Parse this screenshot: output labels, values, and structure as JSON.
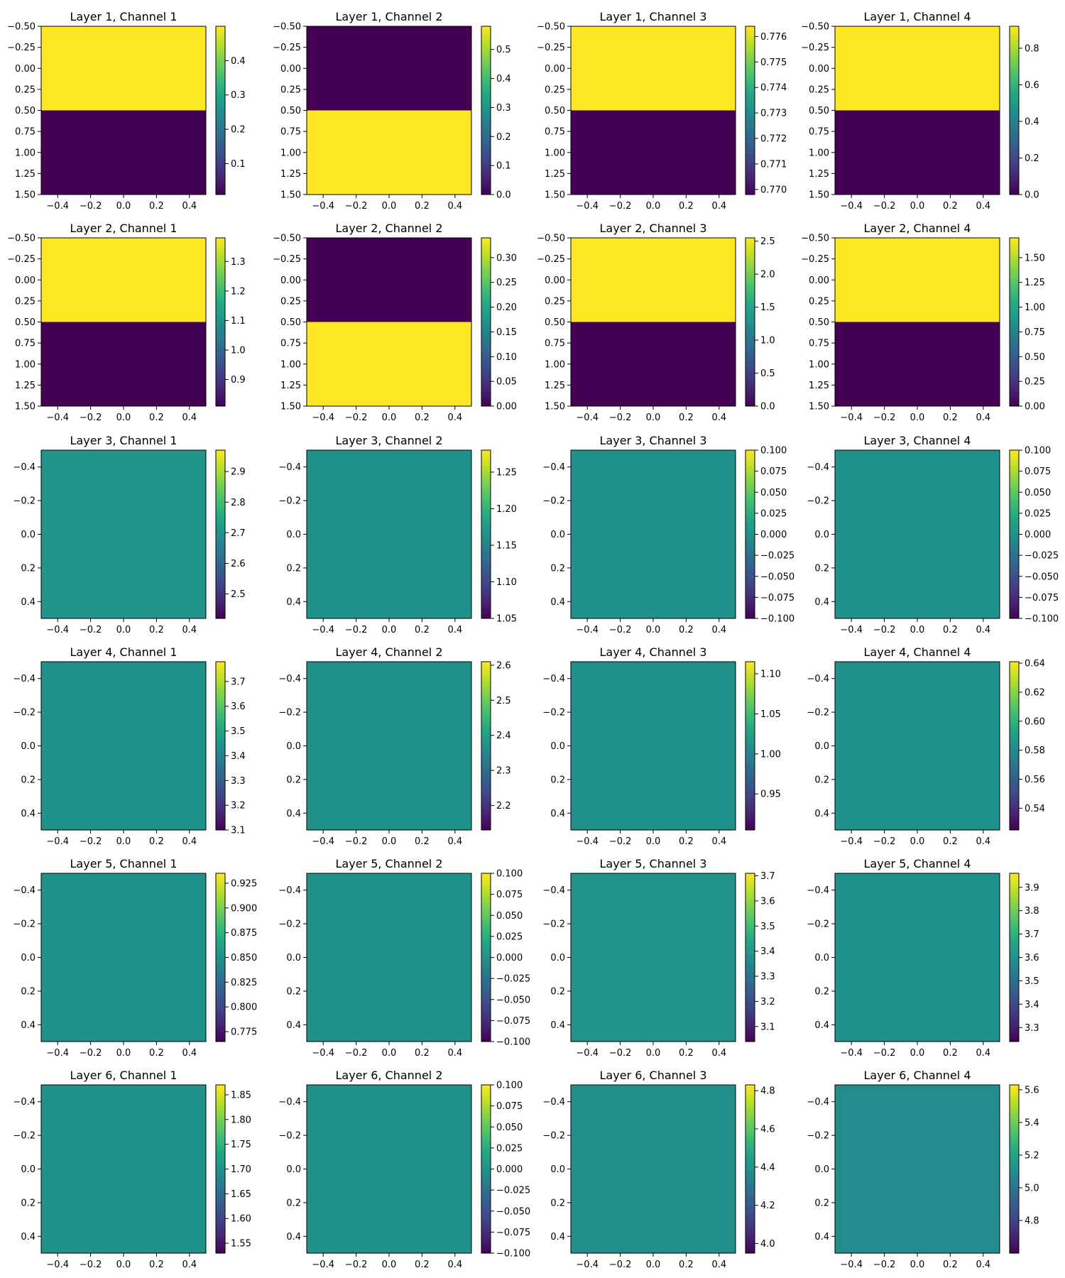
{
  "colors": {
    "viridis_low": "#440154",
    "viridis_mid": "#21918c",
    "viridis_high": "#fde725",
    "axes_edge": "#000000",
    "background": "#ffffff"
  },
  "colormap": "viridis",
  "chart_data": [
    {
      "type": "heatmap",
      "title": "Layer 1, Channel 1",
      "x_extent": [
        -0.5,
        0.5
      ],
      "y_extent": [
        1.5,
        -0.5
      ],
      "y_inverted": true,
      "xticks": [
        "−0.4",
        "−0.2",
        "0.0",
        "0.2",
        "0.4"
      ],
      "yticks": [
        "−0.50",
        "−0.25",
        "0.00",
        "0.25",
        "0.50",
        "0.75",
        "1.00",
        "1.25",
        "1.50"
      ],
      "values": [
        [
          0.5
        ],
        [
          0.01
        ]
      ],
      "colorbar": {
        "range": [
          0.01,
          0.5
        ],
        "ticks": [
          "0.1",
          "0.2",
          "0.3",
          "0.4"
        ]
      }
    },
    {
      "type": "heatmap",
      "title": "Layer 1, Channel 2",
      "x_extent": [
        -0.5,
        0.5
      ],
      "y_extent": [
        1.5,
        -0.5
      ],
      "y_inverted": true,
      "xticks": [
        "−0.4",
        "−0.2",
        "0.0",
        "0.2",
        "0.4"
      ],
      "yticks": [
        "−0.50",
        "−0.25",
        "0.00",
        "0.25",
        "0.50",
        "0.75",
        "1.00",
        "1.25",
        "1.50"
      ],
      "values": [
        [
          0.0
        ],
        [
          0.58
        ]
      ],
      "colorbar": {
        "range": [
          0.0,
          0.58
        ],
        "ticks": [
          "0.0",
          "0.1",
          "0.2",
          "0.3",
          "0.4",
          "0.5"
        ]
      }
    },
    {
      "type": "heatmap",
      "title": "Layer 1, Channel 3",
      "x_extent": [
        -0.5,
        0.5
      ],
      "y_extent": [
        1.5,
        -0.5
      ],
      "y_inverted": true,
      "xticks": [
        "−0.4",
        "−0.2",
        "0.0",
        "0.2",
        "0.4"
      ],
      "yticks": [
        "−0.50",
        "−0.25",
        "0.00",
        "0.25",
        "0.50",
        "0.75",
        "1.00",
        "1.25",
        "1.50"
      ],
      "values": [
        [
          0.7764
        ],
        [
          0.7698
        ]
      ],
      "colorbar": {
        "range": [
          0.7698,
          0.7764
        ],
        "ticks": [
          "0.770",
          "0.771",
          "0.772",
          "0.773",
          "0.774",
          "0.775",
          "0.776"
        ]
      }
    },
    {
      "type": "heatmap",
      "title": "Layer 1, Channel 4",
      "x_extent": [
        -0.5,
        0.5
      ],
      "y_extent": [
        1.5,
        -0.5
      ],
      "y_inverted": true,
      "xticks": [
        "−0.4",
        "−0.2",
        "0.0",
        "0.2",
        "0.4"
      ],
      "yticks": [
        "−0.50",
        "−0.25",
        "0.00",
        "0.25",
        "0.50",
        "0.75",
        "1.00",
        "1.25",
        "1.50"
      ],
      "values": [
        [
          0.92
        ],
        [
          0.0
        ]
      ],
      "colorbar": {
        "range": [
          0.0,
          0.92
        ],
        "ticks": [
          "0.0",
          "0.2",
          "0.4",
          "0.6",
          "0.8"
        ]
      }
    },
    {
      "type": "heatmap",
      "title": "Layer 2, Channel 1",
      "x_extent": [
        -0.5,
        0.5
      ],
      "y_extent": [
        1.5,
        -0.5
      ],
      "y_inverted": true,
      "xticks": [
        "−0.4",
        "−0.2",
        "0.0",
        "0.2",
        "0.4"
      ],
      "yticks": [
        "−0.50",
        "−0.25",
        "0.00",
        "0.25",
        "0.50",
        "0.75",
        "1.00",
        "1.25",
        "1.50"
      ],
      "values": [
        [
          1.38
        ],
        [
          0.81
        ]
      ],
      "colorbar": {
        "range": [
          0.81,
          1.38
        ],
        "ticks": [
          "0.9",
          "1.0",
          "1.1",
          "1.2",
          "1.3"
        ]
      }
    },
    {
      "type": "heatmap",
      "title": "Layer 2, Channel 2",
      "x_extent": [
        -0.5,
        0.5
      ],
      "y_extent": [
        1.5,
        -0.5
      ],
      "y_inverted": true,
      "xticks": [
        "−0.4",
        "−0.2",
        "0.0",
        "0.2",
        "0.4"
      ],
      "yticks": [
        "−0.50",
        "−0.25",
        "0.00",
        "0.25",
        "0.50",
        "0.75",
        "1.00",
        "1.25",
        "1.50"
      ],
      "values": [
        [
          0.0
        ],
        [
          0.34
        ]
      ],
      "colorbar": {
        "range": [
          0.0,
          0.34
        ],
        "ticks": [
          "0.00",
          "0.05",
          "0.10",
          "0.15",
          "0.20",
          "0.25",
          "0.30"
        ]
      }
    },
    {
      "type": "heatmap",
      "title": "Layer 2, Channel 3",
      "x_extent": [
        -0.5,
        0.5
      ],
      "y_extent": [
        1.5,
        -0.5
      ],
      "y_inverted": true,
      "xticks": [
        "−0.4",
        "−0.2",
        "0.0",
        "0.2",
        "0.4"
      ],
      "yticks": [
        "−0.50",
        "−0.25",
        "0.00",
        "0.25",
        "0.50",
        "0.75",
        "1.00",
        "1.25",
        "1.50"
      ],
      "values": [
        [
          2.55
        ],
        [
          0.0
        ]
      ],
      "colorbar": {
        "range": [
          0.0,
          2.55
        ],
        "ticks": [
          "0.0",
          "0.5",
          "1.0",
          "1.5",
          "2.0",
          "2.5"
        ]
      }
    },
    {
      "type": "heatmap",
      "title": "Layer 2, Channel 4",
      "x_extent": [
        -0.5,
        0.5
      ],
      "y_extent": [
        1.5,
        -0.5
      ],
      "y_inverted": true,
      "xticks": [
        "−0.4",
        "−0.2",
        "0.0",
        "0.2",
        "0.4"
      ],
      "yticks": [
        "−0.50",
        "−0.25",
        "0.00",
        "0.25",
        "0.50",
        "0.75",
        "1.00",
        "1.25",
        "1.50"
      ],
      "values": [
        [
          1.7
        ],
        [
          0.0
        ]
      ],
      "colorbar": {
        "range": [
          0.0,
          1.7
        ],
        "ticks": [
          "0.00",
          "0.25",
          "0.50",
          "0.75",
          "1.00",
          "1.25",
          "1.50"
        ]
      }
    },
    {
      "type": "heatmap",
      "title": "Layer 3, Channel 1",
      "x_extent": [
        -0.5,
        0.5
      ],
      "y_extent": [
        0.5,
        -0.5
      ],
      "y_inverted": true,
      "xticks": [
        "−0.4",
        "−0.2",
        "0.0",
        "0.2",
        "0.4"
      ],
      "yticks": [
        "−0.4",
        "−0.2",
        "0.0",
        "0.2",
        "0.4"
      ],
      "values": [
        [
          2.7
        ]
      ],
      "colorbar": {
        "range": [
          2.42,
          2.97
        ],
        "ticks": [
          "2.5",
          "2.6",
          "2.7",
          "2.8",
          "2.9"
        ]
      }
    },
    {
      "type": "heatmap",
      "title": "Layer 3, Channel 2",
      "x_extent": [
        -0.5,
        0.5
      ],
      "y_extent": [
        0.5,
        -0.5
      ],
      "y_inverted": true,
      "xticks": [
        "−0.4",
        "−0.2",
        "0.0",
        "0.2",
        "0.4"
      ],
      "yticks": [
        "−0.4",
        "−0.2",
        "0.0",
        "0.2",
        "0.4"
      ],
      "values": [
        [
          1.165
        ]
      ],
      "colorbar": {
        "range": [
          1.05,
          1.28
        ],
        "ticks": [
          "1.05",
          "1.10",
          "1.15",
          "1.20",
          "1.25"
        ]
      }
    },
    {
      "type": "heatmap",
      "title": "Layer 3, Channel 3",
      "x_extent": [
        -0.5,
        0.5
      ],
      "y_extent": [
        0.5,
        -0.5
      ],
      "y_inverted": true,
      "xticks": [
        "−0.4",
        "−0.2",
        "0.0",
        "0.2",
        "0.4"
      ],
      "yticks": [
        "−0.4",
        "−0.2",
        "0.0",
        "0.2",
        "0.4"
      ],
      "values": [
        [
          0.0
        ]
      ],
      "colorbar": {
        "range": [
          -0.1,
          0.1
        ],
        "ticks": [
          "−0.100",
          "−0.075",
          "−0.050",
          "−0.025",
          "0.000",
          "0.025",
          "0.050",
          "0.075",
          "0.100"
        ]
      }
    },
    {
      "type": "heatmap",
      "title": "Layer 3, Channel 4",
      "x_extent": [
        -0.5,
        0.5
      ],
      "y_extent": [
        0.5,
        -0.5
      ],
      "y_inverted": true,
      "xticks": [
        "−0.4",
        "−0.2",
        "0.0",
        "0.2",
        "0.4"
      ],
      "yticks": [
        "−0.4",
        "−0.2",
        "0.0",
        "0.2",
        "0.4"
      ],
      "values": [
        [
          0.0
        ]
      ],
      "colorbar": {
        "range": [
          -0.1,
          0.1
        ],
        "ticks": [
          "−0.100",
          "−0.075",
          "−0.050",
          "−0.025",
          "0.000",
          "0.025",
          "0.050",
          "0.075",
          "0.100"
        ]
      }
    },
    {
      "type": "heatmap",
      "title": "Layer 4, Channel 1",
      "x_extent": [
        -0.5,
        0.5
      ],
      "y_extent": [
        0.5,
        -0.5
      ],
      "y_inverted": true,
      "xticks": [
        "−0.4",
        "−0.2",
        "0.0",
        "0.2",
        "0.4"
      ],
      "yticks": [
        "−0.4",
        "−0.2",
        "0.0",
        "0.2",
        "0.4"
      ],
      "values": [
        [
          3.44
        ]
      ],
      "colorbar": {
        "range": [
          3.1,
          3.78
        ],
        "ticks": [
          "3.1",
          "3.2",
          "3.3",
          "3.4",
          "3.5",
          "3.6",
          "3.7"
        ]
      }
    },
    {
      "type": "heatmap",
      "title": "Layer 4, Channel 2",
      "x_extent": [
        -0.5,
        0.5
      ],
      "y_extent": [
        0.5,
        -0.5
      ],
      "y_inverted": true,
      "xticks": [
        "−0.4",
        "−0.2",
        "0.0",
        "0.2",
        "0.4"
      ],
      "yticks": [
        "−0.4",
        "−0.2",
        "0.0",
        "0.2",
        "0.4"
      ],
      "values": [
        [
          2.37
        ]
      ],
      "colorbar": {
        "range": [
          2.13,
          2.61
        ],
        "ticks": [
          "2.2",
          "2.3",
          "2.4",
          "2.5",
          "2.6"
        ]
      }
    },
    {
      "type": "heatmap",
      "title": "Layer 4, Channel 3",
      "x_extent": [
        -0.5,
        0.5
      ],
      "y_extent": [
        0.5,
        -0.5
      ],
      "y_inverted": true,
      "xticks": [
        "−0.4",
        "−0.2",
        "0.0",
        "0.2",
        "0.4"
      ],
      "yticks": [
        "−0.4",
        "−0.2",
        "0.0",
        "0.2",
        "0.4"
      ],
      "values": [
        [
          1.01
        ]
      ],
      "colorbar": {
        "range": [
          0.905,
          1.115
        ],
        "ticks": [
          "0.95",
          "1.00",
          "1.05",
          "1.10"
        ]
      }
    },
    {
      "type": "heatmap",
      "title": "Layer 4, Channel 4",
      "x_extent": [
        -0.5,
        0.5
      ],
      "y_extent": [
        0.5,
        -0.5
      ],
      "y_inverted": true,
      "xticks": [
        "−0.4",
        "−0.2",
        "0.0",
        "0.2",
        "0.4"
      ],
      "yticks": [
        "−0.4",
        "−0.2",
        "0.0",
        "0.2",
        "0.4"
      ],
      "values": [
        [
          0.583
        ]
      ],
      "colorbar": {
        "range": [
          0.525,
          0.641
        ],
        "ticks": [
          "0.54",
          "0.56",
          "0.58",
          "0.60",
          "0.62",
          "0.64"
        ]
      }
    },
    {
      "type": "heatmap",
      "title": "Layer 5, Channel 1",
      "x_extent": [
        -0.5,
        0.5
      ],
      "y_extent": [
        0.5,
        -0.5
      ],
      "y_inverted": true,
      "xticks": [
        "−0.4",
        "−0.2",
        "0.0",
        "0.2",
        "0.4"
      ],
      "yticks": [
        "−0.4",
        "−0.2",
        "0.0",
        "0.2",
        "0.4"
      ],
      "values": [
        [
          0.85
        ]
      ],
      "colorbar": {
        "range": [
          0.765,
          0.935
        ],
        "ticks": [
          "0.775",
          "0.800",
          "0.825",
          "0.850",
          "0.875",
          "0.900",
          "0.925"
        ]
      }
    },
    {
      "type": "heatmap",
      "title": "Layer 5, Channel 2",
      "x_extent": [
        -0.5,
        0.5
      ],
      "y_extent": [
        0.5,
        -0.5
      ],
      "y_inverted": true,
      "xticks": [
        "−0.4",
        "−0.2",
        "0.0",
        "0.2",
        "0.4"
      ],
      "yticks": [
        "−0.4",
        "−0.2",
        "0.0",
        "0.2",
        "0.4"
      ],
      "values": [
        [
          0.0
        ]
      ],
      "colorbar": {
        "range": [
          -0.1,
          0.1
        ],
        "ticks": [
          "−0.100",
          "−0.075",
          "−0.050",
          "−0.025",
          "0.000",
          "0.025",
          "0.050",
          "0.075",
          "0.100"
        ]
      }
    },
    {
      "type": "heatmap",
      "title": "Layer 5, Channel 3",
      "x_extent": [
        -0.5,
        0.5
      ],
      "y_extent": [
        0.5,
        -0.5
      ],
      "y_inverted": true,
      "xticks": [
        "−0.4",
        "−0.2",
        "0.0",
        "0.2",
        "0.4"
      ],
      "yticks": [
        "−0.4",
        "−0.2",
        "0.0",
        "0.2",
        "0.4"
      ],
      "values": [
        [
          3.38
        ]
      ],
      "colorbar": {
        "range": [
          3.04,
          3.71
        ],
        "ticks": [
          "3.1",
          "3.2",
          "3.3",
          "3.4",
          "3.5",
          "3.6",
          "3.7"
        ]
      }
    },
    {
      "type": "heatmap",
      "title": "Layer 5, Channel 4",
      "x_extent": [
        -0.5,
        0.5
      ],
      "y_extent": [
        0.5,
        -0.5
      ],
      "y_inverted": true,
      "xticks": [
        "−0.4",
        "−0.2",
        "0.0",
        "0.2",
        "0.4"
      ],
      "yticks": [
        "−0.4",
        "−0.2",
        "0.0",
        "0.2",
        "0.4"
      ],
      "values": [
        [
          3.6
        ]
      ],
      "colorbar": {
        "range": [
          3.24,
          3.96
        ],
        "ticks": [
          "3.3",
          "3.4",
          "3.5",
          "3.6",
          "3.7",
          "3.8",
          "3.9"
        ]
      }
    },
    {
      "type": "heatmap",
      "title": "Layer 6, Channel 1",
      "x_extent": [
        -0.5,
        0.5
      ],
      "y_extent": [
        0.5,
        -0.5
      ],
      "y_inverted": true,
      "xticks": [
        "−0.4",
        "−0.2",
        "0.0",
        "0.2",
        "0.4"
      ],
      "yticks": [
        "−0.4",
        "−0.2",
        "0.0",
        "0.2",
        "0.4"
      ],
      "values": [
        [
          1.7
        ]
      ],
      "colorbar": {
        "range": [
          1.53,
          1.87
        ],
        "ticks": [
          "1.55",
          "1.60",
          "1.65",
          "1.70",
          "1.75",
          "1.80",
          "1.85"
        ]
      }
    },
    {
      "type": "heatmap",
      "title": "Layer 6, Channel 2",
      "x_extent": [
        -0.5,
        0.5
      ],
      "y_extent": [
        0.5,
        -0.5
      ],
      "y_inverted": true,
      "xticks": [
        "−0.4",
        "−0.2",
        "0.0",
        "0.2",
        "0.4"
      ],
      "yticks": [
        "−0.4",
        "−0.2",
        "0.0",
        "0.2",
        "0.4"
      ],
      "values": [
        [
          0.0
        ]
      ],
      "colorbar": {
        "range": [
          -0.1,
          0.1
        ],
        "ticks": [
          "−0.100",
          "−0.075",
          "−0.050",
          "−0.025",
          "0.000",
          "0.025",
          "0.050",
          "0.075",
          "0.100"
        ]
      }
    },
    {
      "type": "heatmap",
      "title": "Layer 6, Channel 3",
      "x_extent": [
        -0.5,
        0.5
      ],
      "y_extent": [
        0.5,
        -0.5
      ],
      "y_inverted": true,
      "xticks": [
        "−0.4",
        "−0.2",
        "0.0",
        "0.2",
        "0.4"
      ],
      "yticks": [
        "−0.4",
        "−0.2",
        "0.0",
        "0.2",
        "0.4"
      ],
      "values": [
        [
          4.38
        ]
      ],
      "colorbar": {
        "range": [
          3.95,
          4.83
        ],
        "ticks": [
          "4.0",
          "4.2",
          "4.4",
          "4.6",
          "4.8"
        ]
      }
    },
    {
      "type": "heatmap",
      "title": "Layer 6, Channel 4",
      "x_extent": [
        -0.5,
        0.5
      ],
      "y_extent": [
        0.5,
        -0.5
      ],
      "y_inverted": true,
      "xticks": [
        "−0.4",
        "−0.2",
        "0.0",
        "0.2",
        "0.4"
      ],
      "yticks": [
        "−0.4",
        "−0.2",
        "0.0",
        "0.2",
        "0.4"
      ],
      "values": [
        [
          5.1
        ]
      ],
      "colorbar": {
        "range": [
          4.6,
          5.63
        ],
        "ticks": [
          "4.8",
          "5.0",
          "5.2",
          "5.4",
          "5.6"
        ]
      }
    }
  ]
}
